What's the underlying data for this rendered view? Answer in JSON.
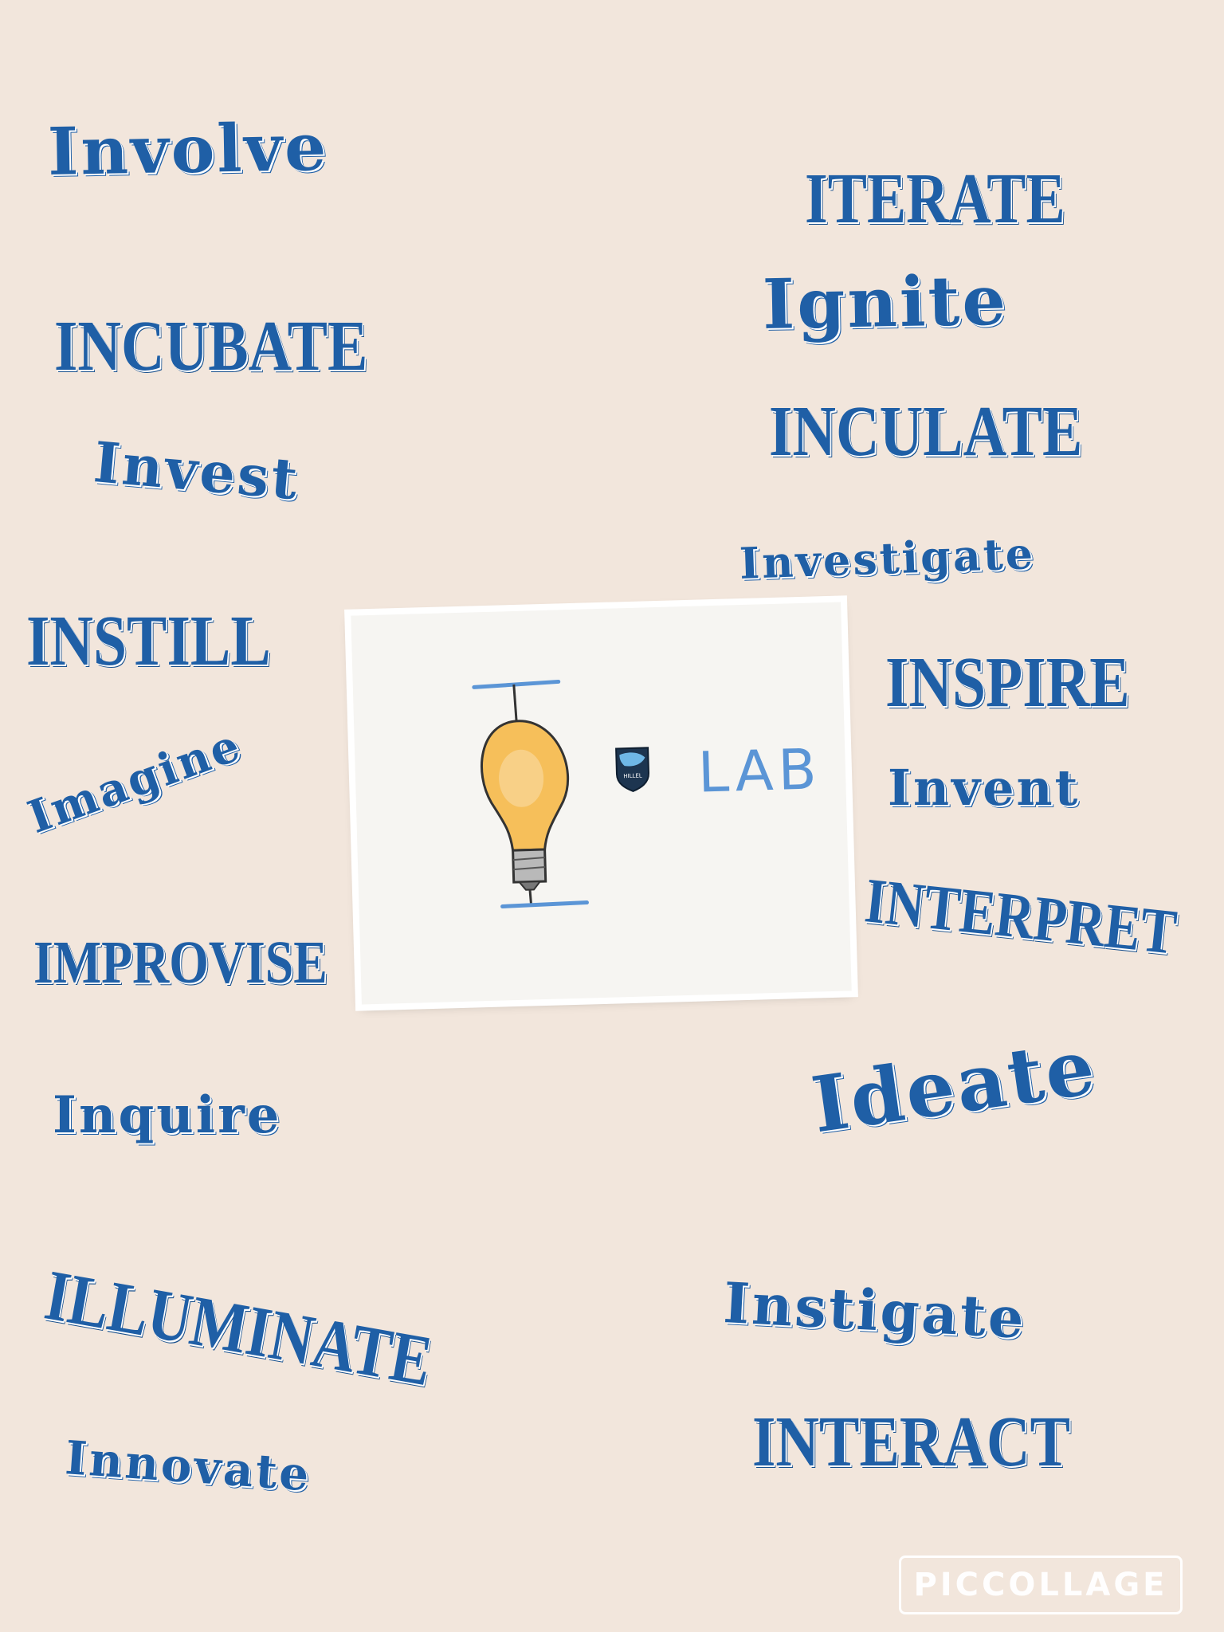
{
  "words": {
    "involve": "Involve",
    "iterate": "ITERATE",
    "incubate": "INCUBATE",
    "ignite": "Ignite",
    "invest": "Invest",
    "inculate": "INCULATE",
    "investigate": "Investigate",
    "instill": "INSTILL",
    "inspire": "INSPIRE",
    "imagine": "Imagine",
    "invent": "Invent",
    "interpret": "INTERPRET",
    "improvise": "IMPROVISE",
    "inquire": "Inquire",
    "ideate": "Ideate",
    "illuminate": "ILLUMINATE",
    "instigate": "Instigate",
    "innovate": "Innovate",
    "interact": "INTERACT"
  },
  "card": {
    "lab_label": "LAB",
    "bulb_icon": "lightbulb-icon",
    "badge_icon": "hillel-badge-icon",
    "badge_text": "HILLEL"
  },
  "watermark": {
    "text": "PICCOLLAGE"
  },
  "colors": {
    "background": "#f2e6dc",
    "word_blue": "#1f5fa6",
    "lab_blue": "#5b95d6",
    "bulb_yellow": "#f6bf5a"
  }
}
